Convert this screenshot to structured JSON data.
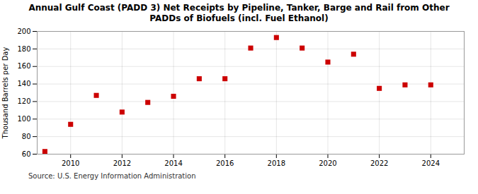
{
  "chart_data": {
    "type": "scatter",
    "title": "Annual Gulf Coast (PADD 3) Net Receipts by Pipeline, Tanker, Barge and Rail from Other\nPADDs of Biofuels (incl. Fuel Ethanol)",
    "ylabel": "Thousand Barrels per Day",
    "annotation": "Source: U.S. Energy Information Administration",
    "x": [
      2009,
      2010,
      2011,
      2012,
      2013,
      2014,
      2015,
      2016,
      2017,
      2018,
      2019,
      2020,
      2021,
      2022,
      2023,
      2024
    ],
    "values": [
      63,
      94,
      127,
      108,
      119,
      126,
      146,
      146,
      181,
      193,
      181,
      165,
      174,
      135,
      139,
      139
    ],
    "color": "#cc0000",
    "marker": "square",
    "xlim": [
      2008.7,
      2025.3
    ],
    "xticks": [
      2010,
      2012,
      2014,
      2016,
      2018,
      2020,
      2022,
      2024
    ],
    "ylim": [
      60,
      200
    ],
    "yticks": [
      60,
      80,
      100,
      120,
      140,
      160,
      180,
      200
    ],
    "grid": true
  }
}
